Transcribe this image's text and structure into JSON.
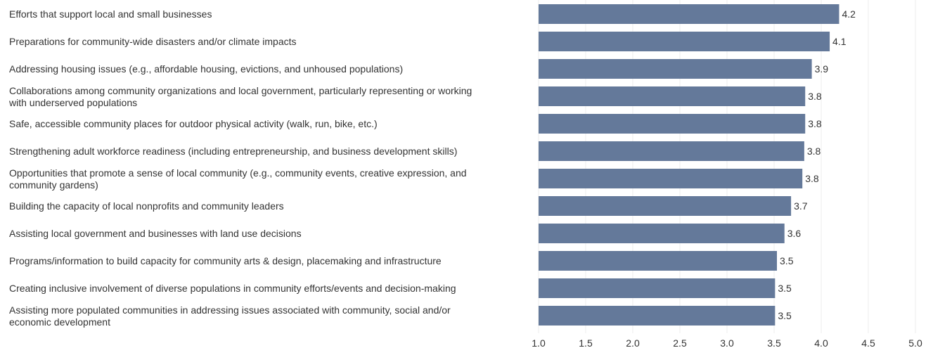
{
  "chart_data": {
    "type": "bar",
    "orientation": "horizontal",
    "categories": [
      "Efforts that support local and small businesses",
      "Preparations for community-wide disasters and/or climate impacts",
      "Addressing housing issues (e.g., affordable housing, evictions, and unhoused populations)",
      "Collaborations among community organizations and local government, particularly representing or working with underserved populations",
      "Safe, accessible community places for outdoor physical activity (walk, run, bike, etc.)",
      "Strengthening adult workforce readiness (including entrepreneurship, and business development skills)",
      "Opportunities that promote a sense of local community (e.g., community events, creative expression, and community gardens)",
      "Building the capacity of local nonprofits and community leaders",
      "Assisting local government and businesses with land use decisions",
      "Programs/information to build capacity for community arts & design, placemaking and infrastructure",
      "Creating inclusive involvement of diverse populations in community efforts/events and decision-making",
      "Assisting more populated communities in addressing issues associated with community, social and/or economic development"
    ],
    "category_label_lines": [
      [
        "Efforts that support local and small businesses"
      ],
      [
        "Preparations for community-wide disasters and/or climate impacts"
      ],
      [
        "Addressing housing issues (e.g., affordable housing, evictions, and unhoused populations)"
      ],
      [
        "Collaborations among community organizations and local government, particularly representing or working",
        "with underserved populations"
      ],
      [
        "Safe, accessible community places for outdoor physical activity (walk, run, bike, etc.)"
      ],
      [
        "Strengthening adult workforce readiness (including entrepreneurship, and business development skills)"
      ],
      [
        "Opportunities that promote a sense of local community (e.g., community events, creative expression, and",
        "community gardens)"
      ],
      [
        "Building the capacity of local nonprofits and community leaders"
      ],
      [
        "Assisting local government and businesses with land use decisions"
      ],
      [
        "Programs/information to build capacity for community arts & design, placemaking and infrastructure"
      ],
      [
        "Creating inclusive involvement of diverse populations in community efforts/events and decision-making"
      ],
      [
        "Assisting more populated communities in addressing issues associated with community, social and/or",
        "economic development"
      ]
    ],
    "values": [
      4.2,
      4.1,
      3.9,
      3.8,
      3.8,
      3.8,
      3.8,
      3.7,
      3.6,
      3.5,
      3.5,
      3.5
    ],
    "value_labels": [
      "4.2",
      "4.1",
      "3.9",
      "3.8",
      "3.8",
      "3.8",
      "3.8",
      "3.7",
      "3.6",
      "3.5",
      "3.5",
      "3.5"
    ],
    "bar_values": [
      4.19,
      4.09,
      3.9,
      3.83,
      3.83,
      3.82,
      3.8,
      3.68,
      3.61,
      3.53,
      3.51,
      3.51
    ],
    "xlim": [
      1.0,
      5.0
    ],
    "xticks": [
      "1.0",
      "1.5",
      "2.0",
      "2.5",
      "3.0",
      "3.5",
      "4.0",
      "4.5",
      "5.0"
    ],
    "xlabel": "",
    "ylabel": "",
    "title": "",
    "bar_color": "#64799a",
    "grid": true
  }
}
